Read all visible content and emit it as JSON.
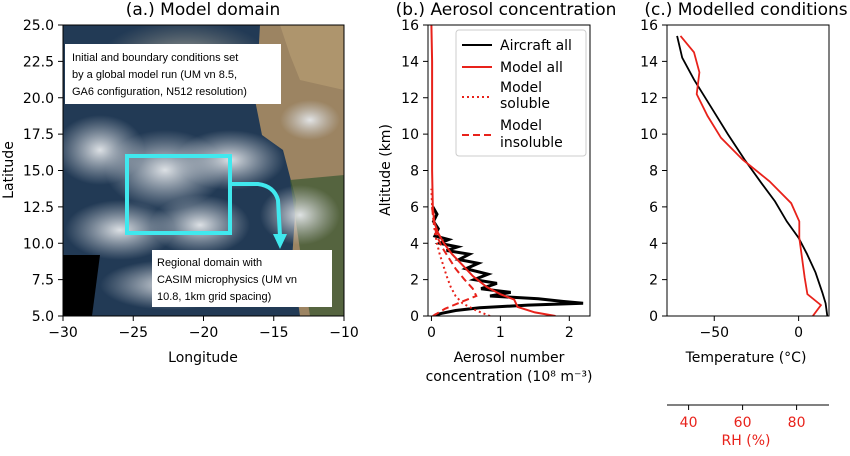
{
  "panel_a": {
    "title": "(a.) Model domain",
    "xlabel": "Longitude",
    "ylabel": "Latitude",
    "xticks": [
      "−30",
      "−25",
      "−20",
      "−15",
      "−10"
    ],
    "yticks": [
      "5.0",
      "7.5",
      "10.0",
      "12.5",
      "15.0",
      "17.5",
      "20.0",
      "22.5",
      "25.0"
    ],
    "annotation_top": [
      "Initial and boundary conditions set",
      "by a global model run (UM vn 8.5,",
      "GA6 configuration, N512 resolution)"
    ],
    "annotation_bottom": [
      "Regional domain with",
      "CASIM microphysics (UM vn",
      "10.8, 1km grid spacing)"
    ],
    "colors": {
      "domain_box": "#40e8ee",
      "land": "#9c8462",
      "ocean": "#1f3550",
      "cloud": "#dcdfe3"
    }
  },
  "chart_data": [
    {
      "type": "line",
      "title": "(b.) Aerosol concentration",
      "xlabel_line1": "Aerosol number",
      "xlabel_line2": "concentration (10⁸  m⁻³)",
      "ylabel": "Altitude (km)",
      "xlim": [
        -0.05,
        2.3
      ],
      "ylim": [
        0,
        16
      ],
      "xticks": [
        "0",
        "1",
        "2"
      ],
      "yticks": [
        "0",
        "2",
        "4",
        "6",
        "8",
        "10",
        "12",
        "14",
        "16"
      ],
      "legend": "top-right",
      "series": [
        {
          "name": "Aircraft all",
          "color": "#000000",
          "dash": "solid",
          "points": [
            [
              0.02,
              6.0
            ],
            [
              0.08,
              5.6
            ],
            [
              0.03,
              5.2
            ],
            [
              0.1,
              4.8
            ],
            [
              0.05,
              4.4
            ],
            [
              0.25,
              4.2
            ],
            [
              0.12,
              4.0
            ],
            [
              0.38,
              3.8
            ],
            [
              0.22,
              3.6
            ],
            [
              0.55,
              3.4
            ],
            [
              0.4,
              3.1
            ],
            [
              0.68,
              2.9
            ],
            [
              0.5,
              2.6
            ],
            [
              0.82,
              2.3
            ],
            [
              0.62,
              2.0
            ],
            [
              0.95,
              1.8
            ],
            [
              0.72,
              1.5
            ],
            [
              1.15,
              1.3
            ],
            [
              0.85,
              1.1
            ],
            [
              1.55,
              0.95
            ],
            [
              1.9,
              0.8
            ],
            [
              2.2,
              0.7
            ],
            [
              1.4,
              0.6
            ],
            [
              0.7,
              0.45
            ],
            [
              0.35,
              0.3
            ],
            [
              0.15,
              0.15
            ],
            [
              0.05,
              0.05
            ]
          ]
        },
        {
          "name": "Model all",
          "color": "#e8221b",
          "dash": "solid",
          "points": [
            [
              1.8,
              0.0
            ],
            [
              1.5,
              0.2
            ],
            [
              1.25,
              0.5
            ],
            [
              1.2,
              0.9
            ],
            [
              1.0,
              1.2
            ],
            [
              0.8,
              1.6
            ],
            [
              0.6,
              2.2
            ],
            [
              0.45,
              2.8
            ],
            [
              0.3,
              3.4
            ],
            [
              0.18,
              4.0
            ],
            [
              0.09,
              4.6
            ],
            [
              0.04,
              5.2
            ],
            [
              0.02,
              6.0
            ],
            [
              0.01,
              8
            ],
            [
              0.01,
              10
            ],
            [
              0.01,
              12
            ],
            [
              0.01,
              14
            ],
            [
              0.0,
              16
            ]
          ]
        },
        {
          "name": "Model soluble",
          "color": "#e8221b",
          "dash": "dotted",
          "points": [
            [
              0.85,
              0.0
            ],
            [
              0.65,
              0.3
            ],
            [
              0.45,
              0.7
            ],
            [
              0.35,
              1.1
            ],
            [
              0.28,
              1.6
            ],
            [
              0.22,
              2.2
            ],
            [
              0.17,
              2.8
            ],
            [
              0.12,
              3.4
            ],
            [
              0.08,
              4.0
            ],
            [
              0.05,
              4.6
            ],
            [
              0.03,
              5.2
            ],
            [
              0.01,
              6.0
            ],
            [
              0.0,
              7.0
            ]
          ]
        },
        {
          "name": "Model insoluble",
          "color": "#e8221b",
          "dash": "dashed",
          "points": [
            [
              0.02,
              0.0
            ],
            [
              0.2,
              0.4
            ],
            [
              0.45,
              0.8
            ],
            [
              0.65,
              1.1
            ],
            [
              0.6,
              1.5
            ],
            [
              0.48,
              2.0
            ],
            [
              0.35,
              2.6
            ],
            [
              0.25,
              3.2
            ],
            [
              0.15,
              3.8
            ],
            [
              0.08,
              4.4
            ],
            [
              0.04,
              5.0
            ],
            [
              0.02,
              5.6
            ],
            [
              0.01,
              6.0
            ]
          ]
        }
      ]
    },
    {
      "type": "line",
      "title": "(c.) Modelled conditions",
      "xlabel": "Temperature  (°C)",
      "xlabel2": "RH (%)",
      "xlim": [
        -78,
        18
      ],
      "ylim": [
        0,
        16
      ],
      "x2lim": [
        32,
        92
      ],
      "xticks": [
        "−50",
        "0"
      ],
      "x2ticks": [
        "40",
        "60",
        "80"
      ],
      "yticks": [
        "0",
        "2",
        "4",
        "6",
        "8",
        "10",
        "12",
        "14",
        "16"
      ],
      "series": [
        {
          "axis": "temperature",
          "color": "#000000",
          "points": [
            [
              -72,
              15.4
            ],
            [
              -69,
              14.2
            ],
            [
              -62,
              13.0
            ],
            [
              -52,
              11.5
            ],
            [
              -42,
              10.0
            ],
            [
              -32,
              8.6
            ],
            [
              -22,
              7.3
            ],
            [
              -14,
              6.3
            ],
            [
              -7,
              5.2
            ],
            [
              0,
              4.3
            ],
            [
              5,
              3.4
            ],
            [
              10,
              2.4
            ],
            [
              14,
              1.3
            ],
            [
              16,
              0.7
            ],
            [
              17,
              0.0
            ]
          ]
        },
        {
          "axis": "rh",
          "color": "#e8221b",
          "points": [
            [
              37,
              15.4
            ],
            [
              42,
              14.5
            ],
            [
              44,
              13.4
            ],
            [
              43,
              12.2
            ],
            [
              47,
              11.0
            ],
            [
              52,
              9.8
            ],
            [
              60,
              8.6
            ],
            [
              70,
              7.4
            ],
            [
              78,
              6.2
            ],
            [
              81,
              5.2
            ],
            [
              81,
              4.3
            ],
            [
              82,
              3.2
            ],
            [
              83,
              2.1
            ],
            [
              84,
              1.2
            ],
            [
              89,
              0.6
            ],
            [
              86,
              0.0
            ]
          ]
        }
      ],
      "rh_axis_color": "#e8221b"
    }
  ]
}
